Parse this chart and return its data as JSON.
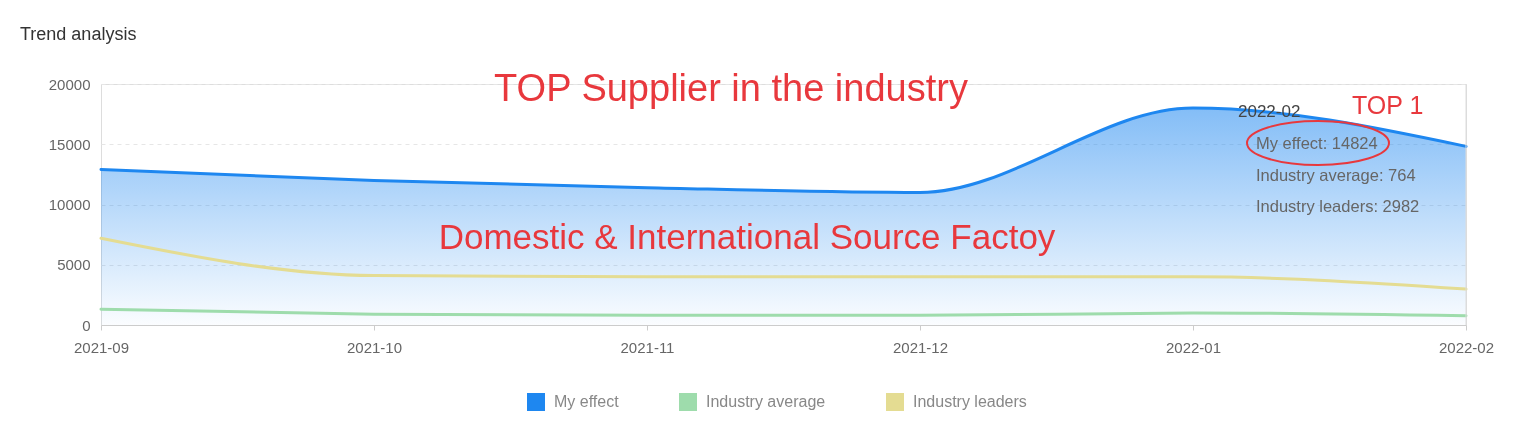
{
  "chart_data": {
    "type": "line",
    "title": "Trend analysis",
    "categories": [
      "2021-09",
      "2021-10",
      "2021-11",
      "2021-12",
      "2022-01",
      "2022-02"
    ],
    "series": [
      {
        "name": "My effect",
        "type": "area",
        "color": "#1e87f0",
        "values": [
          12900,
          12000,
          11400,
          11000,
          18000,
          14824
        ]
      },
      {
        "name": "Industry average",
        "type": "line",
        "color": "#9edcac",
        "values": [
          1300,
          900,
          800,
          800,
          1000,
          764
        ]
      },
      {
        "name": "Industry leaders",
        "type": "line",
        "color": "#e4dc92",
        "values": [
          7200,
          4100,
          4000,
          4000,
          4000,
          2982
        ]
      }
    ],
    "ylim": [
      0,
      20000
    ],
    "yticks": [
      0,
      5000,
      10000,
      15000,
      20000
    ],
    "grid": "y",
    "legend": "bottom",
    "ref_lines": [
      {
        "axis": "x",
        "value": "2022-02",
        "color": "#dcdcdc"
      }
    ],
    "annotations": [
      "TOP Supplier in the industry",
      "Domestic & International Source Factoy",
      "2022-02",
      "TOP 1",
      "My effect: 14824",
      "Industry average: 764",
      "Industry leaders: 2982"
    ]
  }
}
